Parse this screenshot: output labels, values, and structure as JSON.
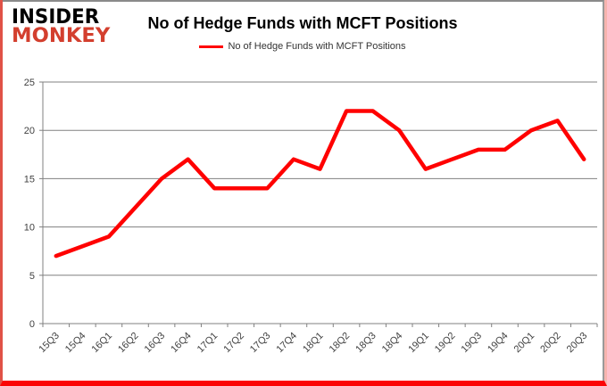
{
  "logo": {
    "line1": "INSIDER",
    "line2": "MONKEY",
    "line2_color": "#d33f2e"
  },
  "header": {
    "title": "No of Hedge Funds with MCFT Positions"
  },
  "legend": {
    "label": "No of Hedge Funds with MCFT Positions",
    "line_color": "#ff0000"
  },
  "chart_data": {
    "type": "line",
    "title": "No of Hedge Funds with MCFT Positions",
    "categories": [
      "15Q3",
      "15Q4",
      "16Q1",
      "16Q2",
      "16Q3",
      "16Q4",
      "17Q1",
      "17Q2",
      "17Q3",
      "17Q4",
      "18Q1",
      "18Q2",
      "18Q3",
      "18Q4",
      "19Q1",
      "19Q2",
      "19Q3",
      "19Q4",
      "20Q1",
      "20Q2",
      "20Q3"
    ],
    "values": [
      7,
      8,
      9,
      12,
      15,
      17,
      14,
      14,
      14,
      17,
      16,
      22,
      22,
      20,
      16,
      17,
      18,
      18,
      20,
      21,
      17
    ],
    "xlabel": "",
    "ylabel": "",
    "ylim": [
      0,
      25
    ],
    "yticks": [
      0,
      5,
      10,
      15,
      20,
      25
    ],
    "grid": true,
    "legend_position": "top",
    "line_color": "#ff0000",
    "line_width": 4.5,
    "grid_color": "#808080",
    "axis_color": "#808080",
    "tick_label_color": "#3f3f3f",
    "tick_label_font_size": 11
  }
}
